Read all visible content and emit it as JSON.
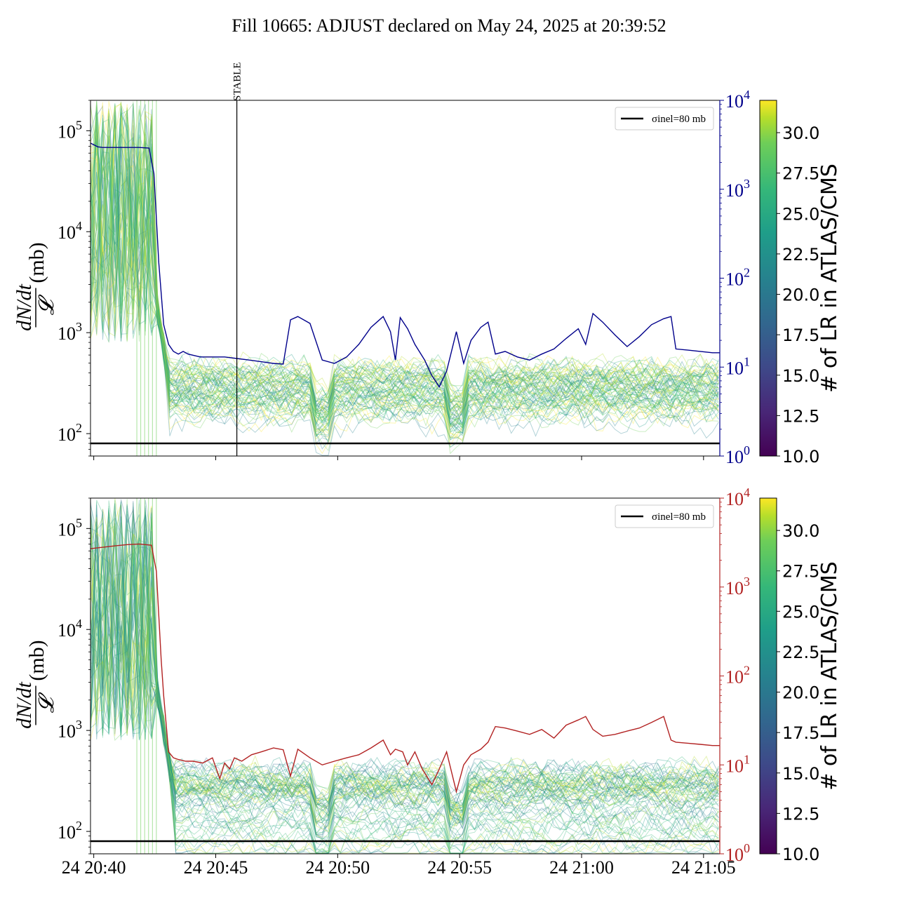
{
  "chart_data": {
    "title": "Fill 10665: ADJUST declared on May 24, 2025 at 20:39:52",
    "shared_x": {
      "unit": "time",
      "range": [
        "24 20:39:52",
        "24 21:05:40"
      ],
      "tick_labels": [
        "24 20:40",
        "24 20:45",
        "24 20:50",
        "24 20:55",
        "24 21:00",
        "24 21:05"
      ],
      "tick_times_min": [
        0,
        5,
        10,
        15,
        20,
        25
      ],
      "tick_time_labels": [
        "20:40",
        "20:45",
        "20:50",
        "20:55",
        "21:00",
        "21:05"
      ]
    },
    "panels": [
      {
        "type": "line",
        "ylabel_num": "dN/dt",
        "ylabel_den": "𝓛",
        "ylabel_unit": "(mb)",
        "yscale": "log",
        "ylim": [
          60,
          200000
        ],
        "y_tick_exponents": [
          2,
          3,
          4,
          5
        ],
        "right_axis": {
          "yscale": "log",
          "ylim": [
            1,
            10000
          ],
          "tick_exponents": [
            0,
            1,
            2,
            3,
            4
          ],
          "color": "#00008b"
        },
        "reference_line": {
          "label": "σinel=80 mb",
          "value": 80,
          "color": "#000000"
        },
        "vertical_marker": {
          "label": "STABLE",
          "time": "20:45:52"
        },
        "right_series": {
          "color": "#00008b",
          "x_min": [
            0,
            0.3,
            0.5,
            1,
            1.5,
            2,
            2.4,
            2.6,
            2.8,
            3.0,
            3.2,
            3.4,
            3.6,
            3.8,
            4.0,
            4.5,
            5,
            5.5,
            6,
            6.5,
            7,
            7.5,
            7.9,
            8.2,
            8.5,
            9,
            9.5,
            10,
            10.5,
            11,
            11.5,
            12,
            12.3,
            12.5,
            12.7,
            13,
            13.3,
            13.7,
            14,
            14.3,
            14.6,
            15,
            15.3,
            15.6,
            16,
            16.3,
            16.6,
            17,
            17.5,
            18,
            18.5,
            19,
            19.5,
            20,
            20.3,
            20.6,
            21,
            21.5,
            22,
            22.5,
            23,
            23.5,
            23.8,
            24,
            24.5,
            25,
            25.5,
            25.8
          ],
          "y": [
            3300,
            3000,
            2950,
            2950,
            2950,
            2950,
            2900,
            1500,
            150,
            30,
            18,
            15,
            14,
            15,
            14,
            13,
            13,
            13,
            12.5,
            12,
            11.5,
            11,
            10.8,
            34,
            37,
            31,
            12,
            11,
            13,
            18,
            28,
            37,
            25,
            12,
            36,
            27,
            18,
            12,
            8,
            6,
            9,
            25,
            11,
            20,
            28,
            32,
            14,
            15,
            13,
            12,
            14,
            16,
            21,
            27,
            18,
            40,
            32,
            23,
            17,
            22,
            30,
            35,
            37,
            16,
            15.5,
            15,
            14.5,
            14.5
          ]
        }
      },
      {
        "type": "line",
        "ylabel_num": "dN/dt",
        "ylabel_den": "𝓛",
        "ylabel_unit": "(mb)",
        "yscale": "log",
        "ylim": [
          60,
          200000
        ],
        "y_tick_exponents": [
          2,
          3,
          4,
          5
        ],
        "right_axis": {
          "yscale": "log",
          "ylim": [
            1,
            10000
          ],
          "tick_exponents": [
            0,
            1,
            2,
            3,
            4
          ],
          "color": "#b22222"
        },
        "reference_line": {
          "label": "σinel=80 mb",
          "value": 80,
          "color": "#000000"
        },
        "right_series": {
          "color": "#b22222",
          "x_min": [
            0,
            0.5,
            1,
            1.5,
            2,
            2.5,
            2.7,
            2.9,
            3.0,
            3.2,
            3.4,
            3.6,
            3.9,
            4.2,
            4.6,
            5,
            5.3,
            5.5,
            5.7,
            5.9,
            6.2,
            6.6,
            7,
            7.5,
            7.9,
            8.2,
            8.5,
            9,
            9.5,
            10,
            10.5,
            11,
            11.5,
            12,
            12.3,
            12.5,
            12.8,
            13,
            13.3,
            13.6,
            14,
            14.3,
            14.6,
            15,
            15.3,
            15.6,
            16,
            16.3,
            16.6,
            17,
            17.5,
            18,
            18.5,
            19,
            19.5,
            20,
            20.3,
            20.6,
            21,
            21.5,
            22,
            22.5,
            23,
            23.5,
            23.8,
            24,
            24.5,
            25,
            25.5,
            25.8
          ],
          "y": [
            2700,
            2800,
            2900,
            3000,
            3050,
            2950,
            1500,
            150,
            60,
            14,
            12,
            11.5,
            11,
            11,
            10.5,
            12,
            7,
            10.5,
            9,
            12,
            11,
            13,
            14,
            15.5,
            14.8,
            7.5,
            15,
            12,
            10,
            11,
            12,
            13,
            15.5,
            19,
            13,
            15,
            14,
            10,
            14,
            9,
            6,
            9,
            14,
            5,
            10,
            13,
            15,
            18,
            27,
            26,
            24,
            22,
            25,
            20,
            28,
            32,
            35,
            25,
            21,
            22,
            24,
            26,
            30,
            35,
            19,
            18,
            17.5,
            17,
            16.5,
            16.5
          ]
        }
      }
    ],
    "colorbars": [
      {
        "label": "# of LR in ATLAS/CMS",
        "range": [
          10.0,
          32.0
        ],
        "ticks": [
          "10.0",
          "12.5",
          "15.0",
          "17.5",
          "20.0",
          "22.5",
          "25.0",
          "27.5",
          "30.0"
        ],
        "colormap": "viridis"
      },
      {
        "label": "# of LR in ATLAS/CMS",
        "range": [
          10.0,
          32.0
        ],
        "ticks": [
          "10.0",
          "12.5",
          "15.0",
          "17.5",
          "20.0",
          "22.5",
          "25.0",
          "27.5",
          "30.0"
        ],
        "colormap": "viridis"
      }
    ],
    "bundle": {
      "description": "many per-bunch traces colored by # of LR",
      "pre_dump_range": [
        1000,
        200000
      ],
      "post_dump_range": [
        80,
        1200
      ]
    }
  }
}
